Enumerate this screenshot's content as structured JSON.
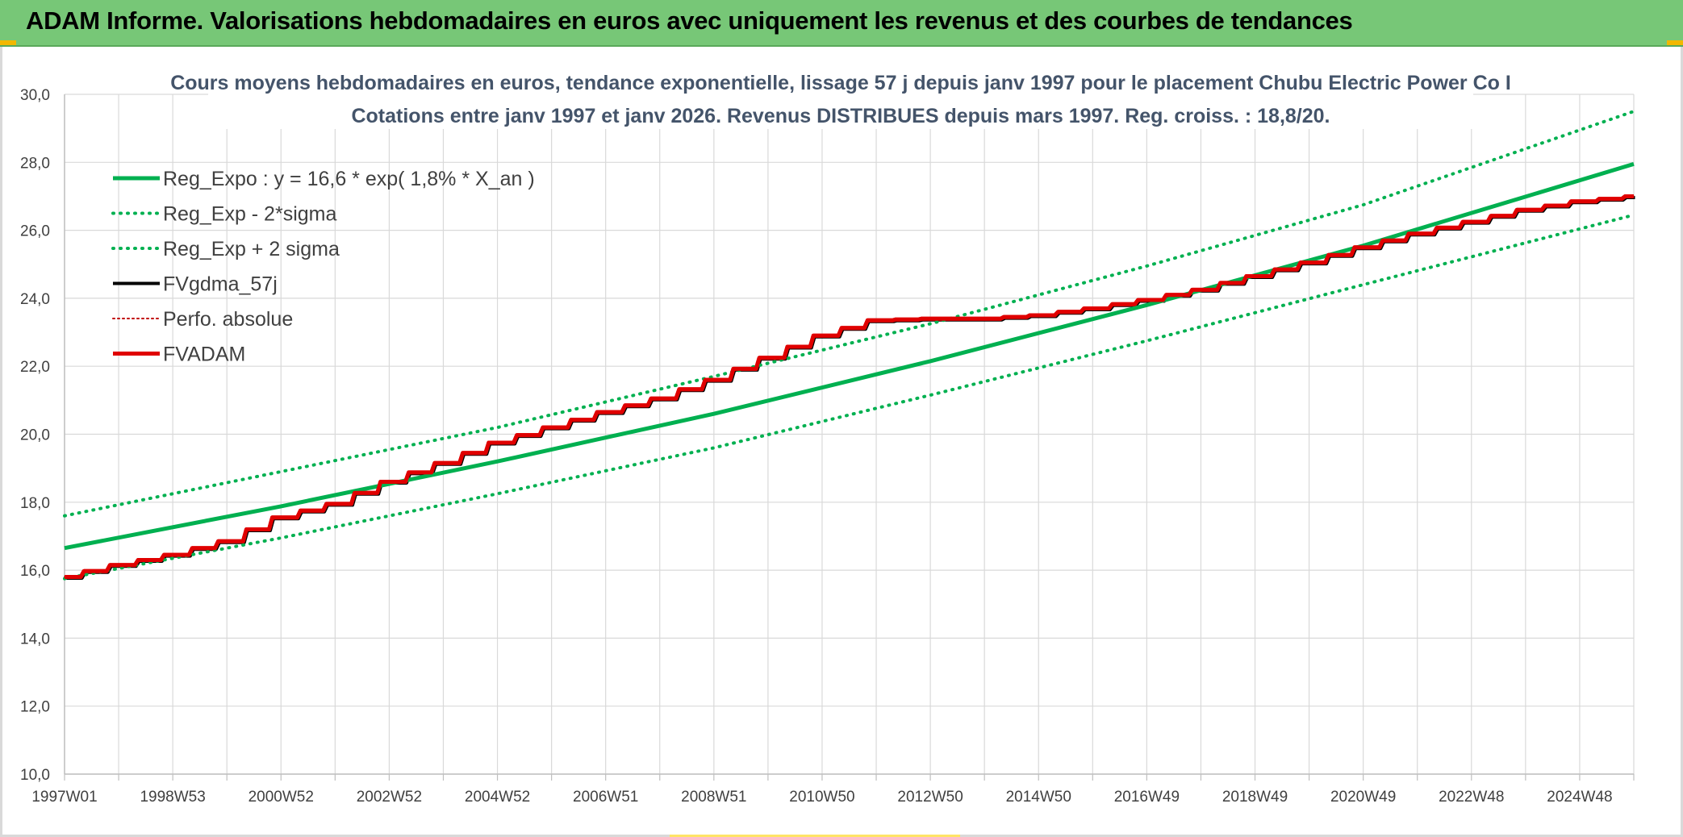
{
  "banner": {
    "title": "ADAM Informe. Valorisations hebdomadaires en euros avec uniquement les revenus et des courbes de tendances"
  },
  "colors": {
    "banner_bg": "#77c777",
    "reg_green": "#00b050",
    "fv_black": "#000000",
    "adam_red": "#e00000",
    "perf_red": "#c00000",
    "grid": "#d9d9d9"
  },
  "chart_data": {
    "type": "line",
    "title": [
      "Cours moyens hebdomadaires en euros, tendance exponentielle, lissage 57 j depuis janv 1997 pour le placement Chubu Electric Power Co I",
      "Cotations entre janv 1997 et janv 2026. Revenus DISTRIBUES depuis mars 1997. Reg. croiss. : 18,8/20."
    ],
    "xlabel": "",
    "ylabel": "",
    "xlim": [
      1997.0,
      2026.0
    ],
    "ylim": [
      10,
      30
    ],
    "yticks": [
      10,
      12,
      14,
      16,
      18,
      20,
      22,
      24,
      26,
      28,
      30
    ],
    "ytick_labels": [
      "10,0",
      "12,0",
      "14,0",
      "16,0",
      "18,0",
      "20,0",
      "22,0",
      "24,0",
      "26,0",
      "28,0",
      "30,0"
    ],
    "xticks": [
      1997.0,
      1999.0,
      2001.0,
      2003.0,
      2005.0,
      2007.0,
      2009.0,
      2011.0,
      2013.0,
      2015.0,
      2017.0,
      2019.0,
      2021.0,
      2023.0,
      2025.0
    ],
    "xtick_labels": [
      "1997W01",
      "1998W53",
      "2000W52",
      "2002W52",
      "2004W52",
      "2006W51",
      "2008W51",
      "2010W50",
      "2012W50",
      "2014W50",
      "2016W49",
      "2018W49",
      "2020W49",
      "2022W48",
      "2024W48"
    ],
    "minor_xticks": [
      1998.0,
      2000.0,
      2002.0,
      2004.0,
      2006.0,
      2008.0,
      2010.0,
      2012.0,
      2014.0,
      2016.0,
      2018.0,
      2020.0,
      2022.0,
      2024.0,
      2026.0
    ],
    "grid": true,
    "legend_position": "top-left",
    "series": [
      {
        "name": "Reg_Expo : y = 16,6 * exp( 1,8% *  X_an )",
        "style": "solid",
        "color": "#00b050",
        "width": 5,
        "x": [
          1997.0,
          2001.0,
          2005.0,
          2009.0,
          2013.0,
          2017.0,
          2021.0,
          2026.0
        ],
        "y": [
          16.65,
          17.88,
          19.2,
          20.6,
          22.15,
          23.8,
          25.55,
          27.95
        ]
      },
      {
        "name": "Reg_Exp - 2*sigma",
        "style": "dotted",
        "color": "#00b050",
        "width": 4,
        "x": [
          1997.0,
          2001.0,
          2005.0,
          2009.0,
          2013.0,
          2017.0,
          2021.0,
          2026.0
        ],
        "y": [
          15.75,
          16.95,
          18.25,
          19.6,
          21.15,
          22.75,
          24.4,
          26.45
        ]
      },
      {
        "name": "Reg_Exp + 2 sigma",
        "style": "dotted",
        "color": "#00b050",
        "width": 4,
        "x": [
          1997.0,
          2001.0,
          2005.0,
          2009.0,
          2013.0,
          2017.0,
          2021.0,
          2026.0
        ],
        "y": [
          17.6,
          18.9,
          20.2,
          21.7,
          23.25,
          24.95,
          26.75,
          29.5
        ]
      },
      {
        "name": "FVgdma_57j",
        "style": "solid",
        "color": "#000000",
        "width": 4,
        "x": [
          1997.0,
          1998.0,
          1999.0,
          2000.0,
          2001.0,
          2002.0,
          2003.0,
          2004.0,
          2005.0,
          2006.0,
          2007.0,
          2008.0,
          2009.0,
          2010.0,
          2011.0,
          2012.0,
          2013.0,
          2014.0,
          2015.0,
          2016.0,
          2017.0,
          2018.0,
          2019.0,
          2020.0,
          2021.0,
          2022.0,
          2023.0,
          2024.0,
          2025.0,
          2026.0
        ],
        "y": [
          15.8,
          16.15,
          16.45,
          16.85,
          17.55,
          17.95,
          18.6,
          19.15,
          19.75,
          20.2,
          20.65,
          21.05,
          21.6,
          22.25,
          22.9,
          23.35,
          23.4,
          23.4,
          23.5,
          23.7,
          23.95,
          24.25,
          24.65,
          25.05,
          25.5,
          25.9,
          26.25,
          26.6,
          26.85,
          27.0
        ]
      },
      {
        "name": "Perfo. absolue",
        "style": "dotted",
        "color": "#c00000",
        "width": 2,
        "x": [
          1997.0,
          1998.0,
          1999.0,
          2000.0,
          2001.0,
          2002.0,
          2003.0,
          2004.0,
          2005.0,
          2006.0,
          2007.0,
          2008.0,
          2009.0,
          2010.0,
          2011.0,
          2012.0,
          2013.0,
          2014.0,
          2015.0,
          2016.0,
          2017.0,
          2018.0,
          2019.0,
          2020.0,
          2021.0,
          2022.0,
          2023.0,
          2024.0,
          2025.0,
          2026.0
        ],
        "y": [
          15.8,
          16.15,
          16.45,
          16.85,
          17.55,
          17.95,
          18.6,
          19.15,
          19.75,
          20.2,
          20.65,
          21.05,
          21.6,
          22.25,
          22.9,
          23.35,
          23.4,
          23.4,
          23.5,
          23.7,
          23.95,
          24.25,
          24.65,
          25.05,
          25.5,
          25.9,
          26.25,
          26.6,
          26.85,
          27.0
        ]
      },
      {
        "name": "FVADAM",
        "style": "solid",
        "color": "#e00000",
        "width": 5,
        "x": [
          1997.0,
          1998.0,
          1999.0,
          2000.0,
          2001.0,
          2002.0,
          2003.0,
          2004.0,
          2005.0,
          2006.0,
          2007.0,
          2008.0,
          2009.0,
          2010.0,
          2011.0,
          2012.0,
          2013.0,
          2014.0,
          2015.0,
          2016.0,
          2017.0,
          2018.0,
          2019.0,
          2020.0,
          2021.0,
          2022.0,
          2023.0,
          2024.0,
          2025.0,
          2026.0
        ],
        "y": [
          15.8,
          16.15,
          16.45,
          16.85,
          17.55,
          17.95,
          18.6,
          19.15,
          19.75,
          20.2,
          20.65,
          21.05,
          21.6,
          22.25,
          22.9,
          23.35,
          23.4,
          23.4,
          23.5,
          23.7,
          23.95,
          24.25,
          24.65,
          25.05,
          25.5,
          25.9,
          26.25,
          26.6,
          26.85,
          27.0
        ]
      }
    ]
  }
}
